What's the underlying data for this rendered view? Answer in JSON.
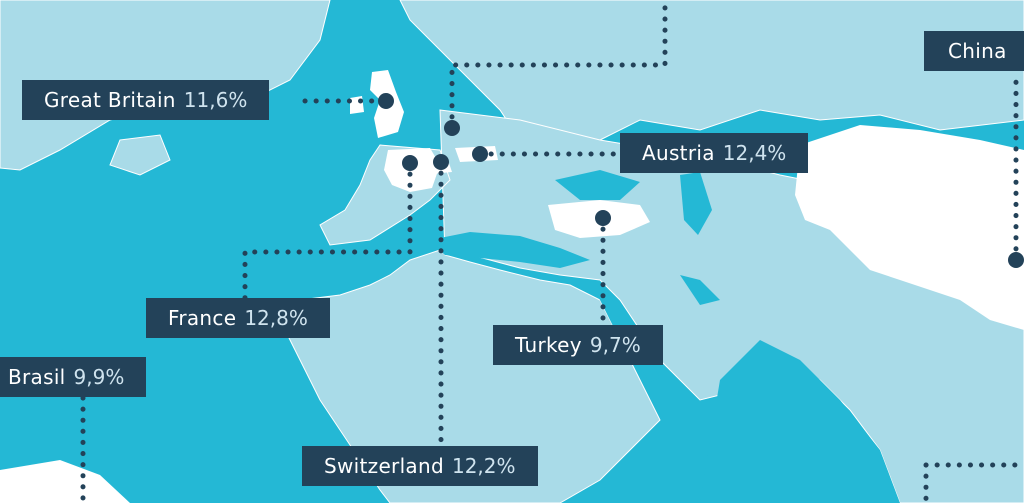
{
  "colors": {
    "ocean": "#24b8d5",
    "land": "#a9dbe8",
    "highlight_land": "#ffffff",
    "borders": "#ffffff",
    "label_bg": "#234259",
    "connector": "#234259"
  },
  "countries": [
    {
      "id": "great-britain",
      "name": "Great Britain",
      "share": "11,6%"
    },
    {
      "id": "france",
      "name": "France",
      "share": "12,8%"
    },
    {
      "id": "switzerland",
      "name": "Switzerland",
      "share": "12,2%"
    },
    {
      "id": "austria",
      "name": "Austria",
      "share": "12,4%"
    },
    {
      "id": "turkey",
      "name": "Turkey",
      "share": "9,7%"
    },
    {
      "id": "brasil",
      "name": "Brasil",
      "share": "9,9%"
    },
    {
      "id": "china",
      "name": "China",
      "share": ""
    }
  ]
}
